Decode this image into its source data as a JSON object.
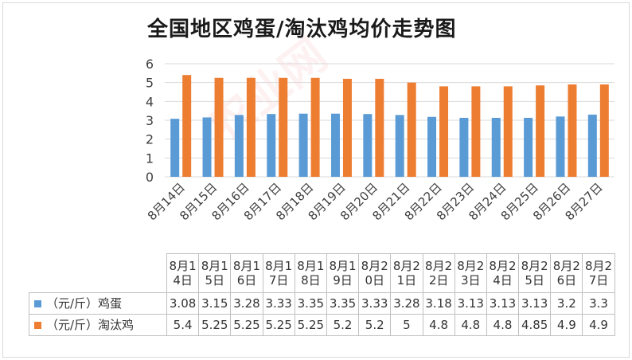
{
  "chart_data": {
    "type": "bar",
    "title": "全国地区鸡蛋/淘汰鸡均价走势图",
    "categories": [
      "8月14日",
      "8月15日",
      "8月16日",
      "8月17日",
      "8月18日",
      "8月19日",
      "8月20日",
      "8月21日",
      "8月22日",
      "8月23日",
      "8月24日",
      "8月25日",
      "8月26日",
      "8月27日"
    ],
    "series": [
      {
        "name": "（元/斤）鸡蛋",
        "color": "#5b9bd5",
        "values": [
          3.08,
          3.15,
          3.28,
          3.33,
          3.35,
          3.35,
          3.33,
          3.28,
          3.18,
          3.13,
          3.13,
          3.13,
          3.2,
          3.3
        ],
        "labels": [
          "3.08",
          "3.15",
          "3.28",
          "3.33",
          "3.35",
          "3.35",
          "3.33",
          "3.28",
          "3.18",
          "3.13",
          "3.13",
          "3.13",
          "3.2",
          "3.3"
        ]
      },
      {
        "name": "（元/斤）淘汰鸡",
        "color": "#ed7d31",
        "values": [
          5.4,
          5.25,
          5.25,
          5.25,
          5.25,
          5.2,
          5.2,
          5,
          4.8,
          4.8,
          4.8,
          4.85,
          4.9,
          4.9
        ],
        "labels": [
          "5.4",
          "5.25",
          "5.25",
          "5.25",
          "5.25",
          "5.2",
          "5.2",
          "5",
          "4.8",
          "4.8",
          "4.8",
          "4.85",
          "4.9",
          "4.9"
        ]
      }
    ],
    "ylim": [
      0,
      6
    ],
    "yticks": [
      "0",
      "1",
      "2",
      "3",
      "4",
      "5",
      "6"
    ],
    "grid": true,
    "legend": "data-table"
  },
  "watermark": "农业网"
}
